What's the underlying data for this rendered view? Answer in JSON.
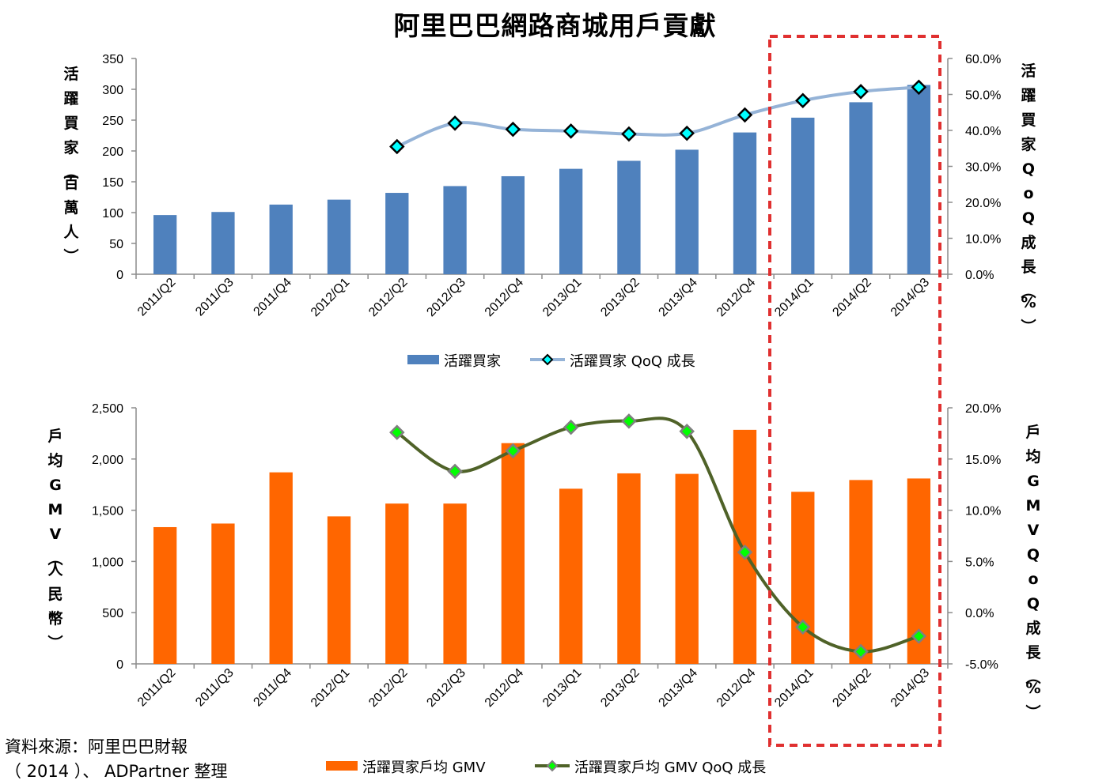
{
  "title": "阿里巴巴網路商城用戶貢獻",
  "source": {
    "line1": "資料來源：阿里巴巴財報",
    "line2": "（ 2014 ）、 ADPartner  整理"
  },
  "colors": {
    "blue_bar": "#4f81bd",
    "blue_line": "#95b3d7",
    "cyan_marker": "#00ffff",
    "orange_bar": "#ff6600",
    "olive_line": "#4f6228",
    "green_marker": "#00ff00",
    "highlight_box": "#e03030"
  },
  "chart_data": [
    {
      "type": "bar",
      "categories": [
        "2011/Q2",
        "2011/Q3",
        "2011/Q4",
        "2012/Q1",
        "2012/Q2",
        "2012/Q3",
        "2012/Q4",
        "2013/Q1",
        "2013/Q2",
        "2013/Q4",
        "2012/Q4",
        "2014/Q1",
        "2014/Q2",
        "2014/Q3"
      ],
      "ylabel": "活躍買家（百萬人）",
      "y2label": "活躍買家QoQ成長（%）",
      "ylim": [
        0,
        350
      ],
      "y2lim": [
        0,
        60
      ],
      "yticks": [
        "0",
        "50",
        "100",
        "150",
        "200",
        "250",
        "300",
        "350"
      ],
      "y2ticks": [
        "0.0%",
        "10.0%",
        "20.0%",
        "30.0%",
        "40.0%",
        "50.0%",
        "60.0%"
      ],
      "series": [
        {
          "name": "活躍買家",
          "kind": "bar",
          "axis": "left",
          "values": [
            96,
            101,
            113,
            121,
            132,
            143,
            159,
            171,
            184,
            202,
            230,
            254,
            279,
            307
          ]
        },
        {
          "name": "活躍買家 QoQ 成長",
          "kind": "line",
          "axis": "right",
          "values": [
            null,
            null,
            null,
            null,
            35.5,
            42.0,
            40.3,
            39.8,
            39.0,
            39.2,
            44.3,
            48.3,
            50.8,
            52.0
          ]
        }
      ]
    },
    {
      "type": "bar",
      "categories": [
        "2011/Q2",
        "2011/Q3",
        "2011/Q4",
        "2012/Q1",
        "2012/Q2",
        "2012/Q3",
        "2012/Q4",
        "2013/Q1",
        "2013/Q2",
        "2013/Q4",
        "2012/Q4",
        "2014/Q1",
        "2014/Q2",
        "2014/Q3"
      ],
      "ylabel": "戶均GMV（人民幣）",
      "y2label": "戶均GMVQoQ成長（%）",
      "ylim": [
        0,
        2500
      ],
      "y2lim": [
        -5,
        20
      ],
      "yticks": [
        "0",
        "500",
        "1,000",
        "1,500",
        "2,000",
        "2,500"
      ],
      "y2ticks": [
        "-5.0%",
        "0.0%",
        "5.0%",
        "10.0%",
        "15.0%",
        "20.0%"
      ],
      "series": [
        {
          "name": "活躍買家戶均 GMV",
          "kind": "bar",
          "axis": "left",
          "values": [
            1335,
            1370,
            1870,
            1440,
            1565,
            1565,
            2155,
            1710,
            1860,
            1855,
            2285,
            1680,
            1795,
            1810
          ]
        },
        {
          "name": "活躍買家戶均 GMV QoQ 成長",
          "kind": "line",
          "axis": "right",
          "values": [
            null,
            null,
            null,
            null,
            17.6,
            13.8,
            15.8,
            18.1,
            18.7,
            17.7,
            5.9,
            -1.4,
            -3.8,
            -2.3
          ]
        }
      ]
    }
  ]
}
